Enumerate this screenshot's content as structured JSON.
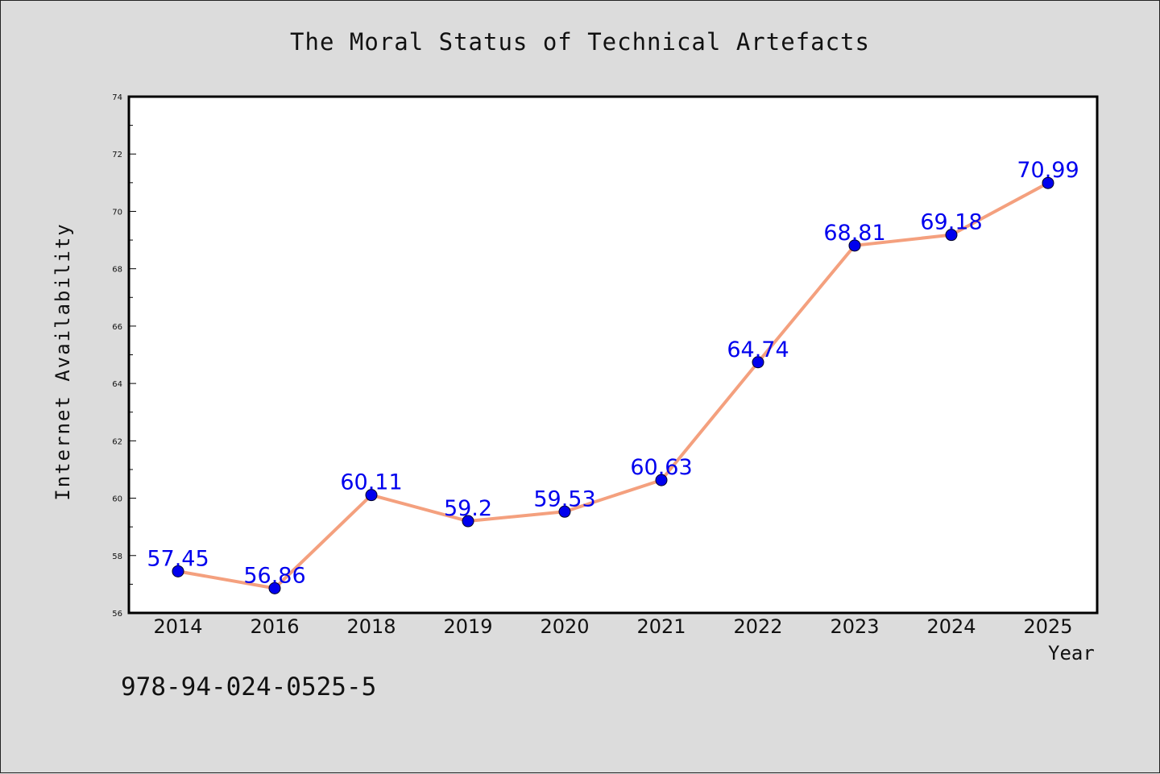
{
  "chart_data": {
    "type": "line",
    "title": "The Moral Status of Technical Artefacts",
    "xlabel": "Year",
    "ylabel": "Internet Availability",
    "categories": [
      "2014",
      "2016",
      "2018",
      "2019",
      "2020",
      "2021",
      "2022",
      "2023",
      "2024",
      "2025"
    ],
    "series": [
      {
        "values": [
          57.45,
          56.86,
          60.11,
          59.2,
          59.53,
          60.63,
          64.74,
          68.81,
          69.18,
          70.99
        ],
        "data_labels": [
          "57.45",
          "56.86",
          "60.11",
          "59.2",
          "59.53",
          "60.63",
          "64.74",
          "68.81",
          "69.18",
          "70.99"
        ],
        "line_color": "#f4a07e",
        "marker_color": "#0000ee",
        "label_color": "#0000ee"
      }
    ],
    "ylim": [
      56,
      74
    ],
    "yticks": [
      "56",
      "58",
      "60",
      "62",
      "64",
      "66",
      "68",
      "70",
      "72",
      "74"
    ],
    "grid": false,
    "legend": "none"
  },
  "footer": {
    "isbn": "978-94-024-0525-5"
  }
}
